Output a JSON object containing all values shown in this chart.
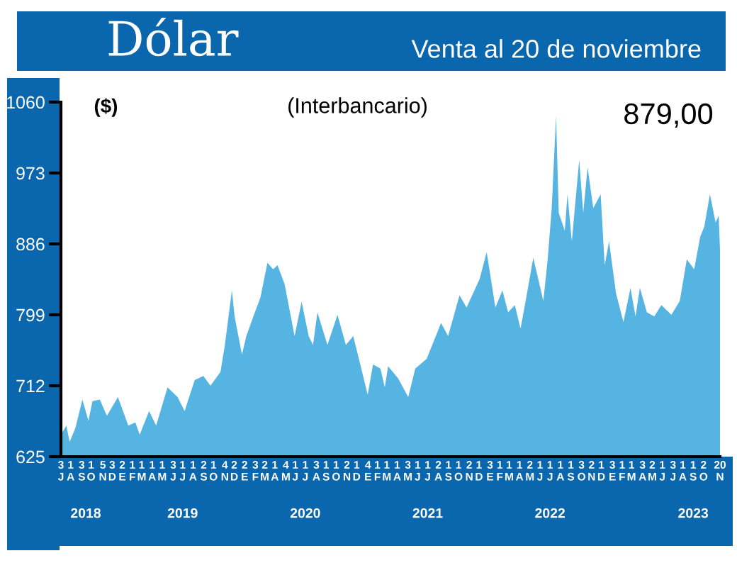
{
  "chart_data": {
    "type": "area",
    "title": "Dólar",
    "subtitle": "Venta al 20 de noviembre",
    "ylabel": "($)",
    "annotations": [
      "(Interbancario)",
      "879,00"
    ],
    "x": [
      "2018-07-03",
      "2018-07-19",
      "2018-07-29",
      "2018-08-15",
      "2018-09-05",
      "2018-09-23",
      "2018-10-05",
      "2018-10-27",
      "2018-11-17",
      "2018-12-20",
      "2019-01-20",
      "2019-02-10",
      "2019-02-23",
      "2019-03-23",
      "2019-04-13",
      "2019-05-17",
      "2019-06-16",
      "2019-07-07",
      "2019-08-06",
      "2019-09-01",
      "2019-09-22",
      "2019-10-22",
      "2019-11-04",
      "2019-11-25",
      "2019-12-03",
      "2019-12-25",
      "2020-01-07",
      "2020-01-28",
      "2020-02-18",
      "2020-03-10",
      "2020-03-27",
      "2020-04-09",
      "2020-04-30",
      "2020-05-30",
      "2020-06-20",
      "2020-07-11",
      "2020-07-24",
      "2020-08-06",
      "2020-09-05",
      "2020-10-05",
      "2020-10-30",
      "2020-11-21",
      "2020-12-12",
      "2021-01-03",
      "2021-01-19",
      "2021-02-10",
      "2021-02-23",
      "2021-03-05",
      "2021-04-04",
      "2021-05-04",
      "2021-05-25",
      "2021-06-28",
      "2021-08-10",
      "2021-08-31",
      "2021-10-04",
      "2021-10-25",
      "2021-12-03",
      "2021-12-24",
      "2022-01-19",
      "2022-02-09",
      "2022-02-26",
      "2022-03-18",
      "2022-04-04",
      "2022-04-21",
      "2022-05-12",
      "2022-06-11",
      "2022-06-24",
      "2022-07-06",
      "2022-07-19",
      "2022-07-27",
      "2022-08-14",
      "2022-08-22",
      "2022-09-04",
      "2022-09-26",
      "2022-10-08",
      "2022-10-21",
      "2022-11-07",
      "2022-11-29",
      "2022-12-11",
      "2022-12-24",
      "2023-01-14",
      "2023-02-05",
      "2023-02-26",
      "2023-03-13",
      "2023-03-26",
      "2023-04-16",
      "2023-05-08",
      "2023-05-29",
      "2023-06-28",
      "2023-07-23",
      "2023-08-13",
      "2023-09-04",
      "2023-09-22",
      "2023-10-04",
      "2023-10-21",
      "2023-11-07",
      "2023-11-16",
      "2023-11-20"
    ],
    "values": [
      652,
      663,
      643,
      660,
      695,
      669,
      693,
      695,
      675,
      698,
      663,
      667,
      652,
      681,
      663,
      710,
      698,
      681,
      719,
      724,
      712,
      729,
      762,
      829,
      797,
      750,
      773,
      797,
      820,
      863,
      855,
      860,
      837,
      773,
      815,
      773,
      762,
      802,
      762,
      799,
      762,
      773,
      738,
      701,
      738,
      733,
      710,
      736,
      721,
      698,
      733,
      745,
      789,
      773,
      823,
      808,
      843,
      876,
      808,
      829,
      802,
      811,
      782,
      820,
      869,
      816,
      867,
      930,
      1043,
      924,
      902,
      947,
      889,
      989,
      924,
      980,
      930,
      947,
      860,
      889,
      825,
      790,
      832,
      797,
      832,
      802,
      797,
      811,
      799,
      816,
      867,
      855,
      895,
      907,
      947,
      912,
      921,
      879
    ],
    "color": "#56b4e3",
    "xlim": [
      "2018-07-03",
      "2023-11-20"
    ],
    "ylim": [
      625,
      1060
    ],
    "yticks": [
      625,
      712,
      799,
      886,
      973,
      1060
    ],
    "xticks": [
      {
        "value": "2018-07-03",
        "label": "3\nJ"
      },
      {
        "value": "2018-08-01",
        "label": "1\nA"
      },
      {
        "value": "2018-09-03",
        "label": "3\nS"
      },
      {
        "value": "2018-10-01",
        "label": "1\nO"
      },
      {
        "value": "2018-11-05",
        "label": "5\nN"
      },
      {
        "value": "2018-12-03",
        "label": "3\nD"
      },
      {
        "value": "2019-01-02",
        "label": "2\nE"
      },
      {
        "value": "2019-02-01",
        "label": "1\nF"
      },
      {
        "value": "2019-03-01",
        "label": "1\nM"
      },
      {
        "value": "2019-04-01",
        "label": "1\nA"
      },
      {
        "value": "2019-05-01",
        "label": "1\nM"
      },
      {
        "value": "2019-06-03",
        "label": "3\nJ"
      },
      {
        "value": "2019-07-01",
        "label": "1\nJ"
      },
      {
        "value": "2019-08-01",
        "label": "1\nA"
      },
      {
        "value": "2019-09-02",
        "label": "2\nS"
      },
      {
        "value": "2019-10-01",
        "label": "1\nO"
      },
      {
        "value": "2019-11-04",
        "label": "4\nN"
      },
      {
        "value": "2019-12-02",
        "label": "2\nD"
      },
      {
        "value": "2020-01-02",
        "label": "2\nE"
      },
      {
        "value": "2020-02-03",
        "label": "3\nF"
      },
      {
        "value": "2020-03-02",
        "label": "2\nM"
      },
      {
        "value": "2020-04-01",
        "label": "1\nA"
      },
      {
        "value": "2020-05-04",
        "label": "4\nM"
      },
      {
        "value": "2020-06-01",
        "label": "1\nJ"
      },
      {
        "value": "2020-07-01",
        "label": "1\nJ"
      },
      {
        "value": "2020-08-03",
        "label": "3\nA"
      },
      {
        "value": "2020-09-01",
        "label": "1\nS"
      },
      {
        "value": "2020-10-01",
        "label": "1\nO"
      },
      {
        "value": "2020-11-02",
        "label": "2\nN"
      },
      {
        "value": "2020-12-01",
        "label": "1\nD"
      },
      {
        "value": "2021-01-04",
        "label": "4\nE"
      },
      {
        "value": "2021-02-01",
        "label": "1\nF"
      },
      {
        "value": "2021-03-01",
        "label": "1\nM"
      },
      {
        "value": "2021-04-01",
        "label": "1\nA"
      },
      {
        "value": "2021-05-03",
        "label": "3\nM"
      },
      {
        "value": "2021-06-01",
        "label": "1\nJ"
      },
      {
        "value": "2021-07-01",
        "label": "1\nJ"
      },
      {
        "value": "2021-08-02",
        "label": "2\nA"
      },
      {
        "value": "2021-09-01",
        "label": "1\nS"
      },
      {
        "value": "2021-10-01",
        "label": "1\nO"
      },
      {
        "value": "2021-11-02",
        "label": "2\nN"
      },
      {
        "value": "2021-12-01",
        "label": "1\nD"
      },
      {
        "value": "2022-01-03",
        "label": "3\nE"
      },
      {
        "value": "2022-02-01",
        "label": "1\nF"
      },
      {
        "value": "2022-03-01",
        "label": "1\nM"
      },
      {
        "value": "2022-04-01",
        "label": "1\nA"
      },
      {
        "value": "2022-05-02",
        "label": "2\nM"
      },
      {
        "value": "2022-06-01",
        "label": "1\nJ"
      },
      {
        "value": "2022-07-01",
        "label": "1\nJ"
      },
      {
        "value": "2022-08-01",
        "label": "1\nA"
      },
      {
        "value": "2022-09-01",
        "label": "1\nS"
      },
      {
        "value": "2022-10-03",
        "label": "3\nO"
      },
      {
        "value": "2022-11-02",
        "label": "2\nN"
      },
      {
        "value": "2022-12-01",
        "label": "1\nD"
      },
      {
        "value": "2023-01-03",
        "label": "3\nE"
      },
      {
        "value": "2023-02-01",
        "label": "1\nF"
      },
      {
        "value": "2023-03-01",
        "label": "1\nM"
      },
      {
        "value": "2023-04-03",
        "label": "3\nA"
      },
      {
        "value": "2023-05-02",
        "label": "2\nM"
      },
      {
        "value": "2023-06-01",
        "label": "1\nJ"
      },
      {
        "value": "2023-07-03",
        "label": "3\nJ"
      },
      {
        "value": "2023-08-01",
        "label": "1\nA"
      },
      {
        "value": "2023-09-01",
        "label": "1\nS"
      },
      {
        "value": "2023-10-02",
        "label": "2\nO"
      },
      {
        "value": "2023-11-20",
        "label": "20\nN"
      }
    ],
    "x2lim": [
      "2018-07-03",
      "2023-11-20"
    ],
    "x2ticks": [
      {
        "value": "2018-09-15",
        "label": "2018"
      },
      {
        "value": "2019-07-01",
        "label": "2019"
      },
      {
        "value": "2020-07-01",
        "label": "2020"
      },
      {
        "value": "2021-07-01",
        "label": "2021"
      },
      {
        "value": "2022-07-01",
        "label": "2022"
      },
      {
        "value": "2023-09-01",
        "label": "2023"
      }
    ],
    "grid": false,
    "legend": false
  }
}
